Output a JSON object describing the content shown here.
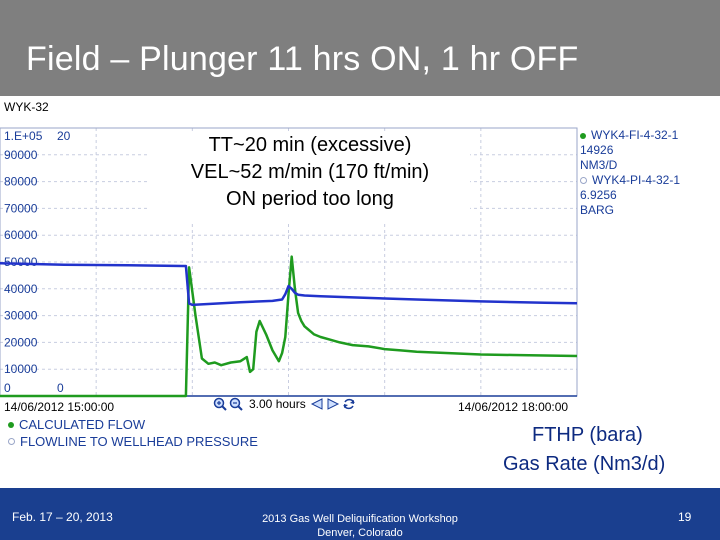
{
  "slide": {
    "title": "Field – Plunger 11 hrs ON, 1 hr OFF",
    "annotations": [
      "TT~20 min (excessive)",
      "VEL~52 m/min (170 ft/min)",
      "ON period too long"
    ],
    "fthp_label": "FTHP (bara)",
    "gas_rate_label": "Gas Rate (Nm3/d)"
  },
  "chart_window": {
    "tag": "WYK-32",
    "left_axis_top": "1.E+05",
    "right_axis_top": "20",
    "left_axis_bottom": "0",
    "right_axis_bottom": "0",
    "time_start": "14/06/2012 15:00:00",
    "time_end": "14/06/2012 18:00:00",
    "span_label": "3.00 hours",
    "legend_right": [
      {
        "tag": "WYK4-FI-4-32-1",
        "value": "14926",
        "unit": "NM3/D",
        "color": "#1f9b1f"
      },
      {
        "tag": "WYK4-PI-4-32-1",
        "value": "6.9256",
        "unit": "BARG",
        "color": "#2233cc"
      }
    ],
    "legend_bottom": [
      {
        "label": "CALCULATED FLOW",
        "color": "#1f9b1f"
      },
      {
        "label": "FLOWLINE TO WELLHEAD PRESSURE",
        "color": "#2233cc"
      }
    ]
  },
  "chart_data": {
    "type": "line",
    "title": "",
    "x_start": "14/06/2012 15:00:00",
    "x_end": "14/06/2012 18:00:00",
    "y_left_ticks": [
      "1.E+05",
      "90000",
      "80000",
      "70000",
      "60000",
      "50000",
      "40000",
      "30000",
      "20000",
      "10000",
      "0"
    ],
    "ylim_left": [
      0,
      100000
    ],
    "ylim_right": [
      0,
      20
    ],
    "grid": true,
    "series": [
      {
        "name": "CALCULATED FLOW",
        "color": "#1f9b1f",
        "axis": "left",
        "x_minutes": [
          0,
          50,
          58,
          59,
          61,
          62,
          63,
          65,
          67,
          69,
          72,
          75,
          77,
          78,
          79,
          80,
          81,
          83,
          85,
          87,
          88,
          89,
          90,
          91,
          92,
          93,
          94,
          95,
          96,
          97,
          98,
          100,
          103,
          106,
          110,
          115,
          120,
          125,
          130,
          140,
          150,
          160,
          170,
          180
        ],
        "y": [
          0,
          0,
          0,
          48000,
          30000,
          22000,
          14000,
          12000,
          12500,
          11500,
          12500,
          13000,
          14500,
          9000,
          10000,
          24000,
          28000,
          23000,
          17000,
          13000,
          16000,
          22000,
          38000,
          52000,
          40000,
          31000,
          28000,
          26000,
          25000,
          24000,
          23000,
          22000,
          21000,
          20000,
          19000,
          18500,
          17500,
          17000,
          16500,
          16000,
          15500,
          15300,
          15100,
          14926
        ]
      },
      {
        "name": "FLOWLINE TO WELLHEAD PRESSURE",
        "color": "#2233cc",
        "axis": "left",
        "x_minutes": [
          0,
          20,
          40,
          57,
          58,
          59,
          60,
          75,
          85,
          88,
          89,
          90,
          91,
          92,
          93,
          95,
          100,
          110,
          130,
          150,
          170,
          180
        ],
        "y": [
          49500,
          49000,
          48800,
          48500,
          48500,
          34500,
          34000,
          35000,
          35500,
          36000,
          38000,
          41000,
          40000,
          38500,
          37800,
          37500,
          37200,
          36800,
          36000,
          35300,
          34800,
          34600
        ]
      }
    ]
  },
  "footer": {
    "date": "Feb. 17 – 20, 2013",
    "workshop_line1": "2013 Gas Well Deliquification Workshop",
    "workshop_line2": "Denver, Colorado",
    "page": "19"
  }
}
